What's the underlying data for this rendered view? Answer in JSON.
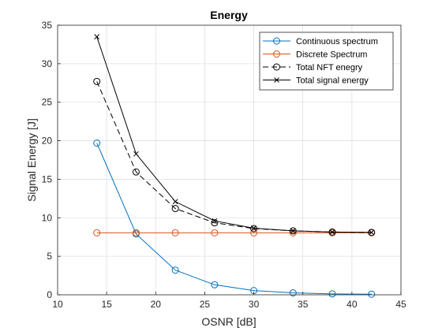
{
  "chart_data": {
    "type": "line",
    "title": "Energy",
    "xlabel": "OSNR [dB]",
    "ylabel": "Signal Energy [J]",
    "xlim": [
      10,
      45
    ],
    "ylim": [
      0,
      35
    ],
    "xticks": [
      10,
      15,
      20,
      25,
      30,
      35,
      40,
      45
    ],
    "yticks": [
      0,
      5,
      10,
      15,
      20,
      25,
      30,
      35
    ],
    "xtick_labels": [
      "10",
      "15",
      "20",
      "25",
      "30",
      "35",
      "40",
      "45"
    ],
    "ytick_labels": [
      "0",
      "5",
      "10",
      "15",
      "20",
      "25",
      "30",
      "35"
    ],
    "grid": true,
    "legend_position": "top-right",
    "x": [
      14,
      18,
      22,
      26,
      30,
      34,
      38,
      42
    ],
    "series": [
      {
        "name": "Continuous spectrum",
        "color": "#0072BD",
        "marker": "circle",
        "line_style": "solid",
        "values": [
          19.7,
          7.9,
          3.2,
          1.3,
          0.55,
          0.25,
          0.12,
          0.08
        ]
      },
      {
        "name": "Discrete Spectrum",
        "color": "#D95319",
        "marker": "circle",
        "line_style": "solid",
        "values": [
          8.05,
          8.05,
          8.05,
          8.05,
          8.05,
          8.05,
          8.05,
          8.05
        ]
      },
      {
        "name": "Total NFT enegry",
        "color": "#000000",
        "marker": "circle",
        "line_style": "dashed",
        "values": [
          27.7,
          15.95,
          11.2,
          9.35,
          8.6,
          8.3,
          8.15,
          8.1
        ]
      },
      {
        "name": "Total signal energy",
        "color": "#000000",
        "marker": "x",
        "line_style": "solid",
        "values": [
          33.5,
          18.3,
          12.1,
          9.6,
          8.65,
          8.3,
          8.15,
          8.1
        ]
      }
    ]
  }
}
